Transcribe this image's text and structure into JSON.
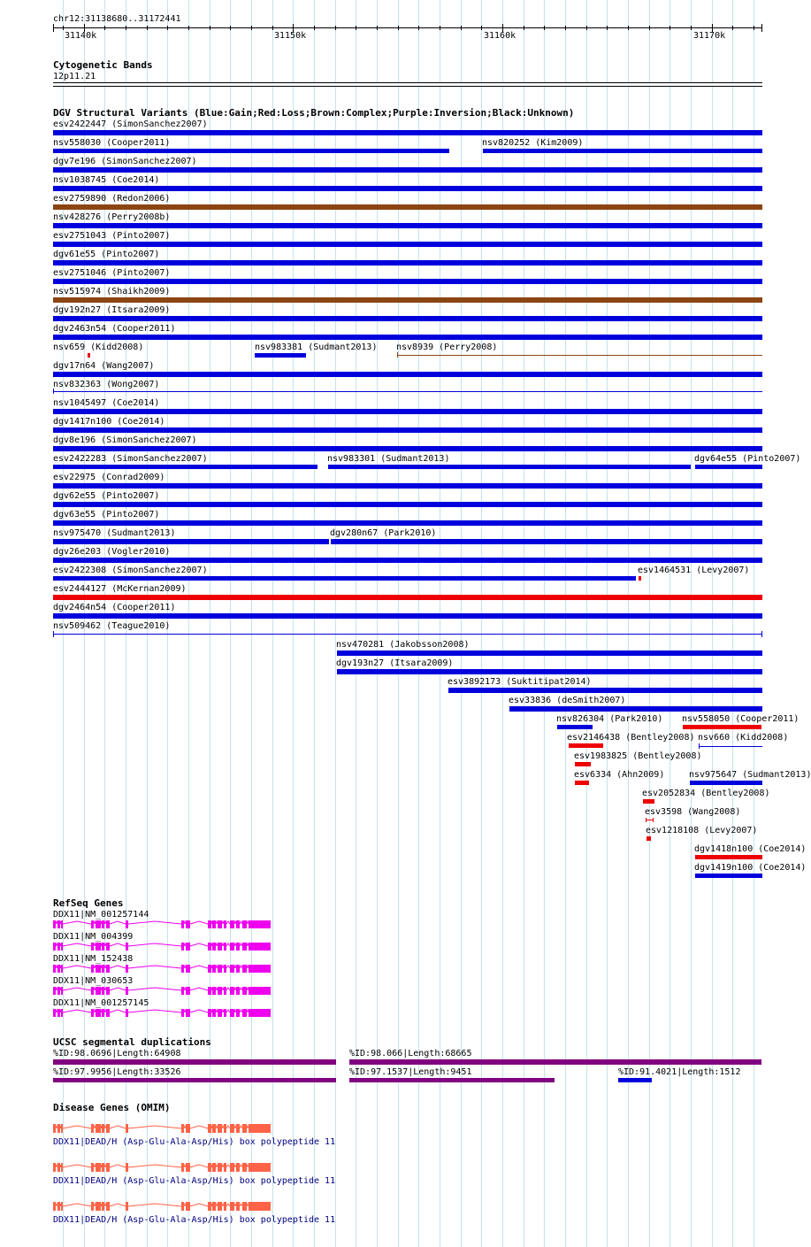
{
  "colors": {
    "gain": "#0000dd",
    "loss": "#ee0000",
    "complex": "#8b4513",
    "refseq": "#ee00ee",
    "segdup_purple": "#800080",
    "segdup_blue": "#0000dd",
    "omim": "#ff6347",
    "omim_label": "#000080",
    "grid": "#c4e2ee"
  },
  "ruler": {
    "location": "chr12:31138680..31172441",
    "labels": [
      "31140k",
      "31150k",
      "31160k",
      "31170k"
    ]
  },
  "tracks": {
    "cytoband": {
      "title": "Cytogenetic Bands",
      "band_label": "12p11.21"
    },
    "dgv": {
      "title": "DGV Structural Variants (Blue:Gain;Red:Loss;Brown:Complex;Purple:Inversion;Black:Unknown)",
      "features": [
        {
          "label": "esv2422447 (SimonSanchez2007)",
          "type": "gain"
        },
        {
          "label": "nsv558030 (Cooper2011)",
          "type": "gain"
        },
        {
          "label": "nsv820252 (Kim2009)",
          "type": "gain"
        },
        {
          "label": "dgv7e196 (SimonSanchez2007)",
          "type": "gain"
        },
        {
          "label": "nsv1038745 (Coe2014)",
          "type": "gain"
        },
        {
          "label": "esv2759890 (Redon2006)",
          "type": "complex"
        },
        {
          "label": "nsv428276 (Perry2008b)",
          "type": "gain"
        },
        {
          "label": "esv2751043 (Pinto2007)",
          "type": "gain"
        },
        {
          "label": "dgv61e55 (Pinto2007)",
          "type": "gain"
        },
        {
          "label": "esv2751046 (Pinto2007)",
          "type": "gain"
        },
        {
          "label": "nsv515974 (Shaikh2009)",
          "type": "complex"
        },
        {
          "label": "dgv192n27 (Itsara2009)",
          "type": "gain"
        },
        {
          "label": "dgv2463n54 (Cooper2011)",
          "type": "gain"
        },
        {
          "label": "nsv659 (Kidd2008)",
          "type": "loss"
        },
        {
          "label": "nsv983381 (Sudmant2013)",
          "type": "gain"
        },
        {
          "label": "nsv8939 (Perry2008)",
          "type": "complex"
        },
        {
          "label": "dgv17n64 (Wang2007)",
          "type": "gain"
        },
        {
          "label": "nsv832363 (Wong2007)",
          "type": "gain"
        },
        {
          "label": "nsv1045497 (Coe2014)",
          "type": "gain"
        },
        {
          "label": "dgv1417n100 (Coe2014)",
          "type": "gain"
        },
        {
          "label": "dgv8e196 (SimonSanchez2007)",
          "type": "gain"
        },
        {
          "label": "esv2422283 (SimonSanchez2007)",
          "type": "gain"
        },
        {
          "label": "nsv983301 (Sudmant2013)",
          "type": "gain"
        },
        {
          "label": "dgv64e55 (Pinto2007)",
          "type": "gain"
        },
        {
          "label": "esv22975 (Conrad2009)",
          "type": "gain"
        },
        {
          "label": "dgv62e55 (Pinto2007)",
          "type": "gain"
        },
        {
          "label": "dgv63e55 (Pinto2007)",
          "type": "gain"
        },
        {
          "label": "nsv975470 (Sudmant2013)",
          "type": "gain"
        },
        {
          "label": "dgv280n67 (Park2010)",
          "type": "gain"
        },
        {
          "label": "dgv26e203 (Vogler2010)",
          "type": "gain"
        },
        {
          "label": "esv2422308 (SimonSanchez2007)",
          "type": "gain"
        },
        {
          "label": "esv1464531 (Levy2007)",
          "type": "loss"
        },
        {
          "label": "esv2444127 (McKernan2009)",
          "type": "loss"
        },
        {
          "label": "dgv2464n54 (Cooper2011)",
          "type": "gain"
        },
        {
          "label": "nsv509462 (Teague2010)",
          "type": "gain"
        },
        {
          "label": "nsv470281 (Jakobsson2008)",
          "type": "gain"
        },
        {
          "label": "dgv193n27 (Itsara2009)",
          "type": "gain"
        },
        {
          "label": "esv3892173 (Suktitipat2014)",
          "type": "gain"
        },
        {
          "label": "esv33836 (deSmith2007)",
          "type": "gain"
        },
        {
          "label": "nsv826304 (Park2010)",
          "type": "gain"
        },
        {
          "label": "nsv558050 (Cooper2011)",
          "type": "loss"
        },
        {
          "label": "esv2146438 (Bentley2008)",
          "type": "loss"
        },
        {
          "label": "nsv660 (Kidd2008)",
          "type": "gain"
        },
        {
          "label": "esv1983825 (Bentley2008)",
          "type": "loss"
        },
        {
          "label": "esv6334 (Ahn2009)",
          "type": "loss"
        },
        {
          "label": "nsv975647 (Sudmant2013)",
          "type": "gain"
        },
        {
          "label": "esv2052834 (Bentley2008)",
          "type": "loss"
        },
        {
          "label": "esv3598 (Wang2008)",
          "type": "loss"
        },
        {
          "label": "esv1218108 (Levy2007)",
          "type": "loss"
        },
        {
          "label": "dgv1418n100 (Coe2014)",
          "type": "loss"
        },
        {
          "label": "dgv1419n100 (Coe2014)",
          "type": "gain"
        }
      ]
    },
    "refseq": {
      "title": "RefSeq Genes",
      "transcripts": [
        {
          "label": "DDX11|NM_001257144"
        },
        {
          "label": "DDX11|NM_004399"
        },
        {
          "label": "DDX11|NM_152438"
        },
        {
          "label": "DDX11|NM_030653"
        },
        {
          "label": "DDX11|NM_001257145"
        }
      ]
    },
    "segdup": {
      "title": "UCSC segmental duplications",
      "features": [
        {
          "label": "%ID:98.0696|Length:64908",
          "color": "#800080"
        },
        {
          "label": "%ID:98.066|Length:68665",
          "color": "#800080"
        },
        {
          "label": "%ID:97.9956|Length:33526",
          "color": "#800080"
        },
        {
          "label": "%ID:97.1537|Length:9451",
          "color": "#800080"
        },
        {
          "label": "%ID:91.4021|Length:1512",
          "color": "#0000dd"
        }
      ]
    },
    "omim": {
      "title": "Disease Genes (OMIM)",
      "features": [
        {
          "label": "DDX11|DEAD/H (Asp-Glu-Ala-Asp/His) box polypeptide 11"
        },
        {
          "label": "DDX11|DEAD/H (Asp-Glu-Ala-Asp/His) box polypeptide 11"
        },
        {
          "label": "DDX11|DEAD/H (Asp-Glu-Ala-Asp/His) box polypeptide 11"
        }
      ]
    }
  }
}
